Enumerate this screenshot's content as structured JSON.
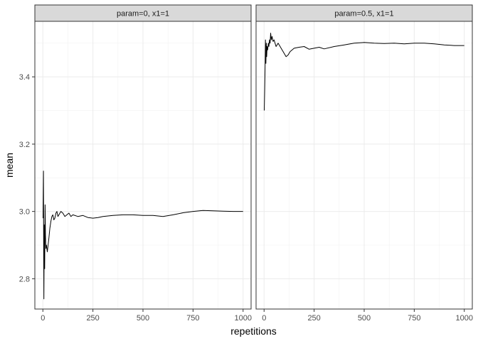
{
  "chart_data": {
    "type": "line",
    "xlabel": "repetitions",
    "ylabel": "mean",
    "xlim": [
      -40,
      1040
    ],
    "ylim": [
      2.71,
      3.565
    ],
    "x_ticks": [
      0,
      250,
      500,
      750,
      1000
    ],
    "x_tick_labels": [
      "0",
      "250",
      "500",
      "750",
      "1000"
    ],
    "y_ticks": [
      2.8,
      3.0,
      3.2,
      3.4
    ],
    "y_tick_labels": [
      "2.8",
      "3.0",
      "3.2",
      "3.4"
    ],
    "grid": true,
    "panels": [
      {
        "strip": "param=0, x1=1",
        "series": [
          {
            "x": [
              1,
              3,
              5,
              7,
              9,
              11,
              13,
              15,
              18,
              22,
              26,
              30,
              35,
              40,
              45,
              50,
              55,
              60,
              65,
              70,
              75,
              80,
              90,
              100,
              110,
              120,
              130,
              140,
              150,
              175,
              200,
              225,
              250,
              275,
              300,
              350,
              400,
              450,
              500,
              550,
              600,
              650,
              700,
              750,
              800,
              850,
              900,
              950,
              1000
            ],
            "values": [
              2.98,
              3.12,
              2.74,
              2.96,
              2.83,
              3.02,
              2.93,
              2.89,
              2.9,
              2.88,
              2.9,
              2.92,
              2.95,
              2.97,
              2.985,
              2.99,
              2.975,
              2.98,
              2.995,
              3.0,
              2.985,
              2.99,
              3.0,
              2.995,
              2.985,
              2.99,
              2.995,
              2.985,
              2.99,
              2.985,
              2.988,
              2.982,
              2.98,
              2.982,
              2.985,
              2.988,
              2.99,
              2.99,
              2.988,
              2.988,
              2.985,
              2.99,
              2.996,
              3.0,
              3.003,
              3.002,
              3.001,
              3.0,
              3.0
            ]
          }
        ]
      },
      {
        "strip": "param=0.5, x1=1",
        "series": [
          {
            "x": [
              1,
              3,
              5,
              7,
              9,
              11,
              13,
              15,
              18,
              21,
              24,
              27,
              30,
              33,
              36,
              40,
              45,
              50,
              55,
              60,
              70,
              80,
              90,
              100,
              110,
              120,
              130,
              140,
              150,
              175,
              200,
              225,
              250,
              275,
              300,
              350,
              400,
              450,
              500,
              550,
              600,
              650,
              700,
              750,
              800,
              850,
              900,
              950,
              1000
            ],
            "values": [
              3.3,
              3.36,
              3.43,
              3.51,
              3.44,
              3.5,
              3.46,
              3.49,
              3.48,
              3.5,
              3.49,
              3.51,
              3.5,
              3.53,
              3.51,
              3.52,
              3.505,
              3.51,
              3.5,
              3.49,
              3.5,
              3.49,
              3.48,
              3.47,
              3.46,
              3.465,
              3.475,
              3.48,
              3.485,
              3.488,
              3.49,
              3.482,
              3.485,
              3.488,
              3.483,
              3.49,
              3.495,
              3.5,
              3.502,
              3.5,
              3.499,
              3.5,
              3.498,
              3.5,
              3.5,
              3.498,
              3.495,
              3.493,
              3.493
            ]
          }
        ]
      }
    ]
  }
}
